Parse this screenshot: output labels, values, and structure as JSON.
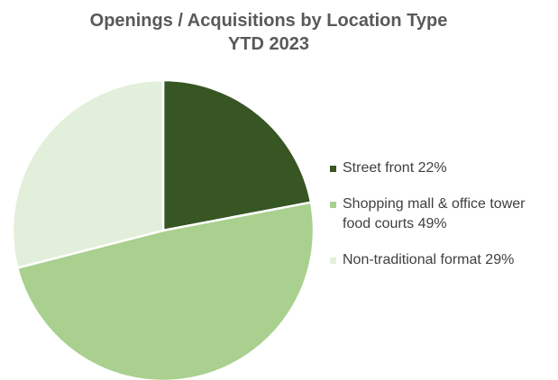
{
  "chart_data": {
    "type": "pie",
    "title": "Openings / Acquisitions  by Location Type",
    "subtitle": "YTD 2023",
    "categories": [
      "Street front",
      "Shopping mall & office tower food courts",
      "Non-traditional format"
    ],
    "values": [
      22,
      49,
      29
    ],
    "value_labels": [
      "22%",
      "49%",
      "29%"
    ],
    "colors": [
      "#375623",
      "#a9d08e",
      "#e2efda"
    ],
    "legend": "right"
  }
}
